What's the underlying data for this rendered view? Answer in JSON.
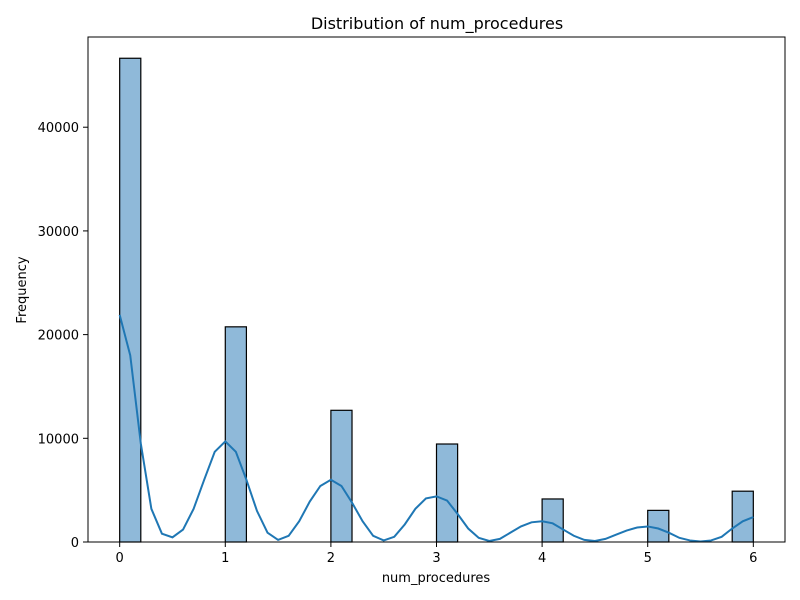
{
  "chart_data": {
    "type": "bar",
    "title": "Distribution of num_procedures",
    "xlabel": "num_procedures",
    "ylabel": "Frequency",
    "xlim": [
      -0.3,
      6.3
    ],
    "ylim": [
      0,
      48700
    ],
    "xticks": [
      0,
      1,
      2,
      3,
      4,
      5,
      6
    ],
    "yticks": [
      0,
      10000,
      20000,
      30000,
      40000
    ],
    "bars": [
      {
        "x0": 0.0,
        "x1": 0.2,
        "value": 46650
      },
      {
        "x0": 1.0,
        "x1": 1.2,
        "value": 20750
      },
      {
        "x0": 2.0,
        "x1": 2.2,
        "value": 12700
      },
      {
        "x0": 3.0,
        "x1": 3.2,
        "value": 9450
      },
      {
        "x0": 4.0,
        "x1": 4.2,
        "value": 4150
      },
      {
        "x0": 5.0,
        "x1": 5.2,
        "value": 3050
      },
      {
        "x0": 5.8,
        "x1": 6.0,
        "value": 4900
      }
    ],
    "kde": {
      "x": [
        0.0,
        0.1,
        0.2,
        0.3,
        0.4,
        0.5,
        0.6,
        0.7,
        0.8,
        0.9,
        1.0,
        1.1,
        1.2,
        1.3,
        1.4,
        1.5,
        1.6,
        1.7,
        1.8,
        1.9,
        2.0,
        2.1,
        2.2,
        2.3,
        2.4,
        2.5,
        2.6,
        2.7,
        2.8,
        2.9,
        3.0,
        3.1,
        3.2,
        3.3,
        3.4,
        3.5,
        3.6,
        3.7,
        3.8,
        3.9,
        4.0,
        4.1,
        4.2,
        4.3,
        4.4,
        4.5,
        4.6,
        4.7,
        4.8,
        4.9,
        5.0,
        5.1,
        5.2,
        5.3,
        5.4,
        5.5,
        5.6,
        5.7,
        5.8,
        5.9,
        6.0
      ],
      "y": [
        21900,
        18000,
        9500,
        3200,
        800,
        450,
        1200,
        3200,
        6000,
        8700,
        9700,
        8700,
        6000,
        3000,
        900,
        200,
        600,
        2000,
        3900,
        5400,
        6000,
        5400,
        3800,
        2000,
        600,
        150,
        500,
        1700,
        3200,
        4200,
        4400,
        4000,
        2700,
        1300,
        400,
        100,
        300,
        900,
        1500,
        1900,
        2000,
        1800,
        1200,
        600,
        200,
        100,
        300,
        700,
        1100,
        1400,
        1500,
        1300,
        900,
        400,
        150,
        50,
        150,
        500,
        1300,
        2000,
        2400
      ]
    }
  }
}
